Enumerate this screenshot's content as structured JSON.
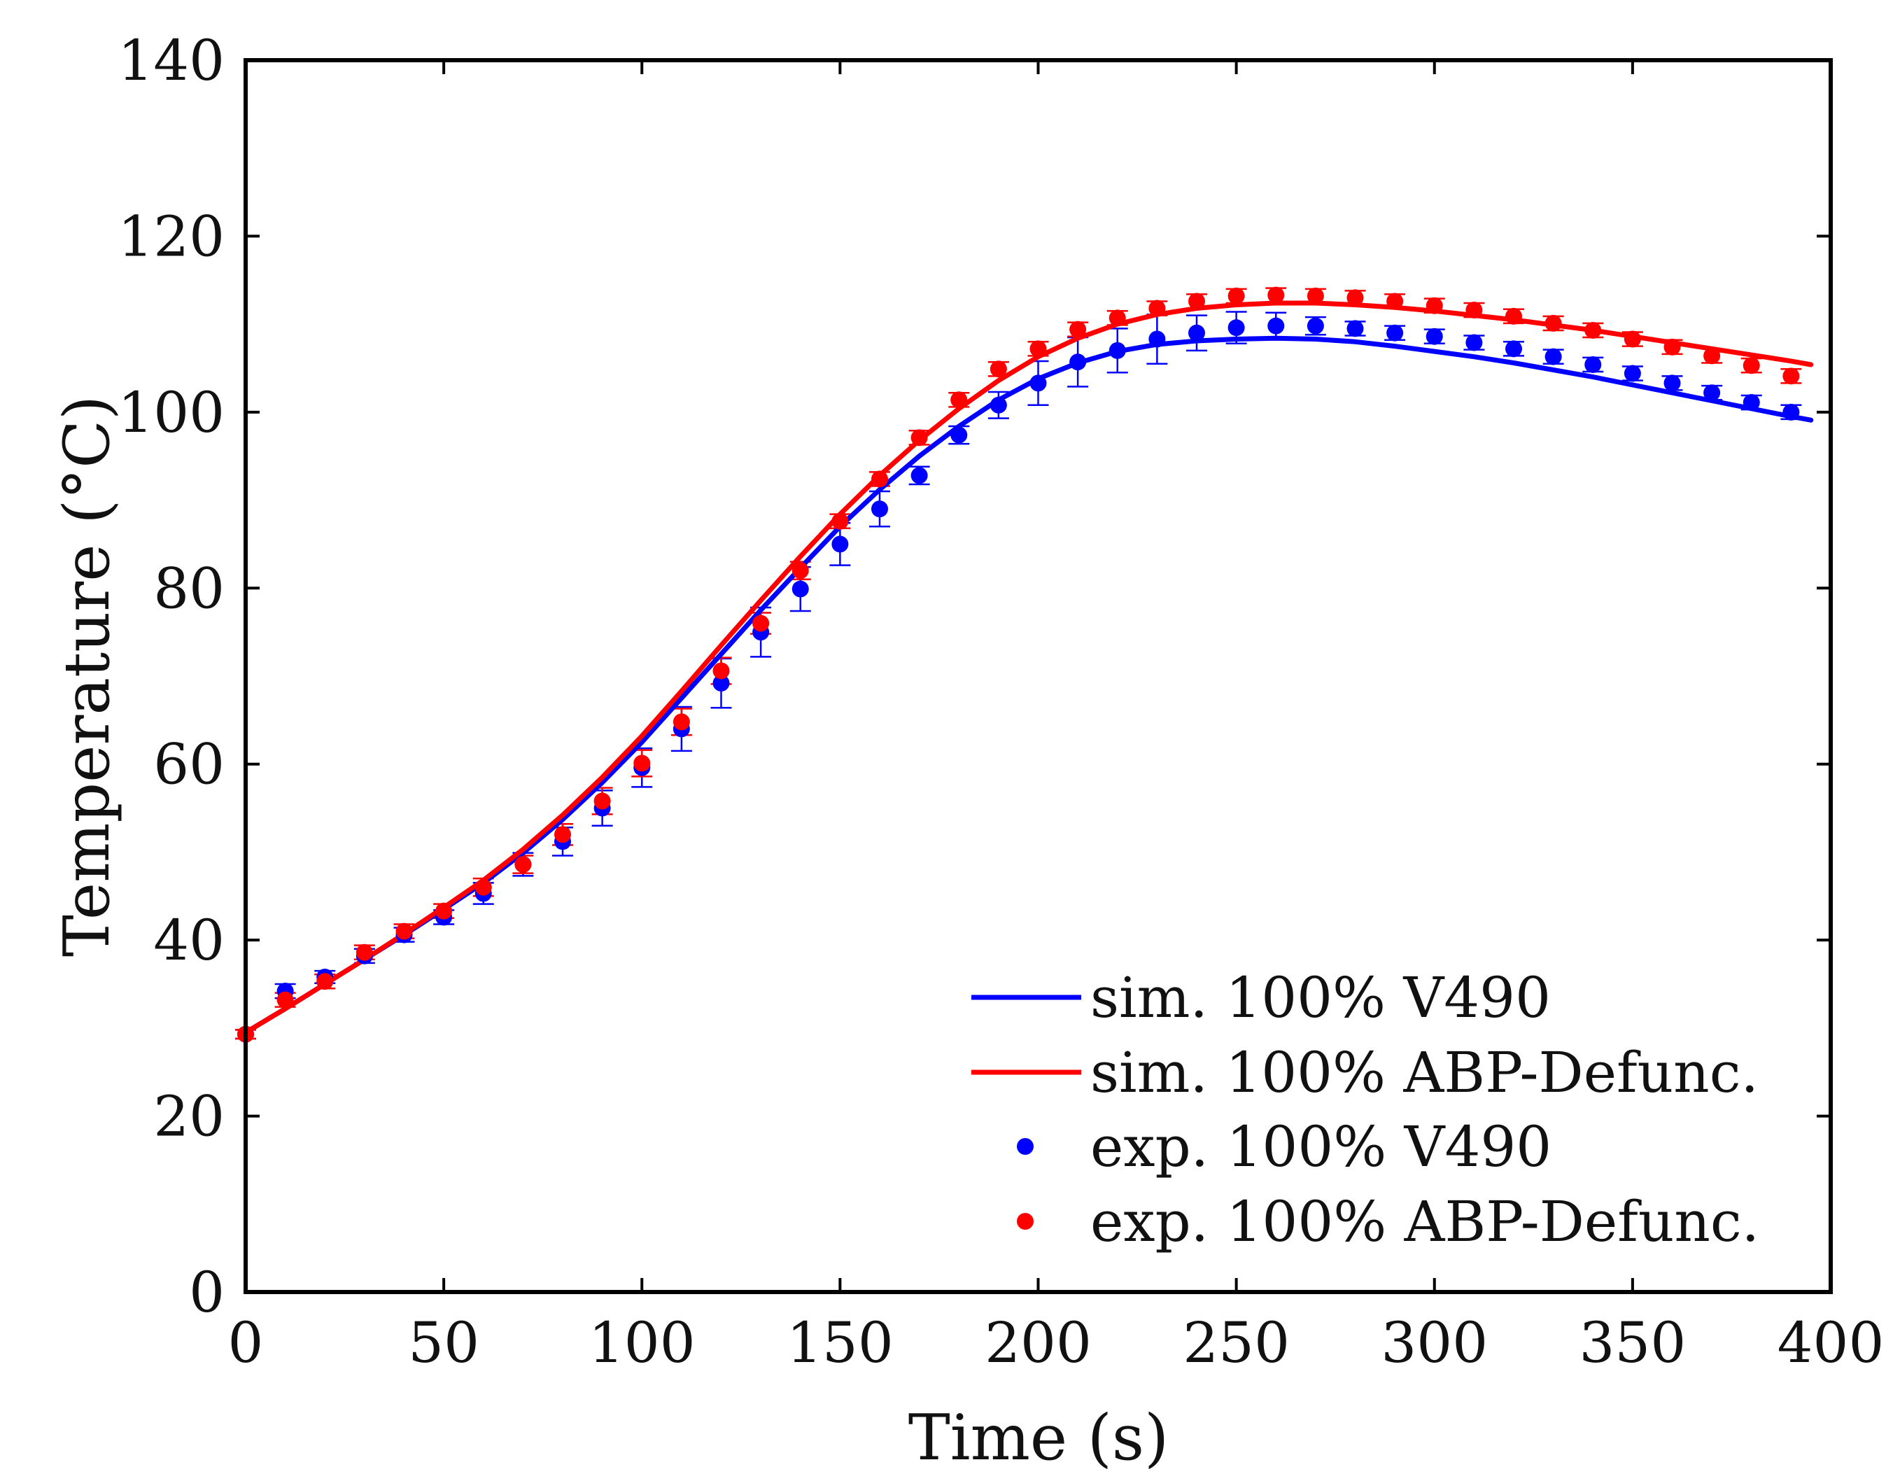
{
  "chart_data": {
    "type": "line",
    "title": "",
    "xlabel": "Time (s)",
    "ylabel": "Temperature (°C)",
    "xlim": [
      0,
      400
    ],
    "ylim": [
      0,
      140
    ],
    "xticks": [
      0,
      50,
      100,
      150,
      200,
      250,
      300,
      350,
      400
    ],
    "yticks": [
      0,
      20,
      40,
      60,
      80,
      100,
      120,
      140
    ],
    "grid": false,
    "legend_position": "bottom-right",
    "series": [
      {
        "name": "sim. 100% V490",
        "kind": "line",
        "color": "#0000ff",
        "x": [
          0,
          10,
          20,
          30,
          40,
          50,
          60,
          70,
          80,
          90,
          100,
          110,
          120,
          130,
          140,
          150,
          160,
          170,
          180,
          190,
          200,
          210,
          220,
          230,
          240,
          250,
          260,
          270,
          280,
          290,
          300,
          310,
          320,
          330,
          340,
          350,
          360,
          370,
          380,
          390,
          395
        ],
        "y": [
          29.5,
          32.2,
          35.0,
          37.8,
          40.6,
          43.5,
          46.5,
          49.9,
          53.7,
          57.9,
          62.5,
          67.5,
          72.5,
          77.5,
          82.3,
          87.0,
          91.2,
          95.0,
          98.4,
          101.4,
          103.8,
          105.6,
          106.9,
          107.7,
          108.1,
          108.3,
          108.4,
          108.3,
          108.0,
          107.5,
          106.9,
          106.3,
          105.6,
          104.8,
          104.0,
          103.1,
          102.2,
          101.3,
          100.4,
          99.5,
          99.1
        ]
      },
      {
        "name": "sim. 100% ABP-Defunc.",
        "kind": "line",
        "color": "#ff0000",
        "x": [
          0,
          10,
          20,
          30,
          40,
          50,
          60,
          70,
          80,
          90,
          100,
          110,
          120,
          130,
          140,
          150,
          160,
          170,
          180,
          190,
          200,
          210,
          220,
          230,
          240,
          250,
          260,
          270,
          280,
          290,
          300,
          310,
          320,
          330,
          340,
          350,
          360,
          370,
          380,
          390,
          395
        ],
        "y": [
          29.5,
          32.2,
          35.0,
          37.8,
          40.7,
          43.7,
          46.8,
          50.3,
          54.2,
          58.5,
          63.2,
          68.3,
          73.5,
          78.6,
          83.6,
          88.4,
          92.8,
          96.8,
          100.4,
          103.6,
          106.3,
          108.4,
          110.0,
          111.1,
          111.8,
          112.2,
          112.4,
          112.4,
          112.2,
          111.9,
          111.5,
          111.0,
          110.5,
          109.9,
          109.3,
          108.6,
          107.9,
          107.2,
          106.5,
          105.8,
          105.4
        ]
      },
      {
        "name": "exp. 100% V490",
        "kind": "scatter",
        "color": "#0000ff",
        "x": [
          0,
          10,
          20,
          30,
          40,
          50,
          60,
          70,
          80,
          90,
          100,
          110,
          120,
          130,
          140,
          150,
          160,
          170,
          180,
          190,
          200,
          210,
          220,
          230,
          240,
          250,
          260,
          270,
          280,
          290,
          300,
          310,
          320,
          330,
          340,
          350,
          360,
          370,
          380,
          390
        ],
        "y": [
          29.3,
          34.2,
          35.8,
          38.2,
          40.6,
          42.6,
          45.3,
          48.6,
          51.2,
          55.0,
          59.6,
          64.0,
          69.2,
          75.0,
          79.9,
          85.0,
          89.0,
          92.8,
          97.4,
          100.8,
          103.3,
          105.7,
          107.0,
          108.3,
          109.0,
          109.6,
          109.8,
          109.8,
          109.5,
          109.0,
          108.6,
          107.9,
          107.2,
          106.3,
          105.4,
          104.4,
          103.3,
          102.2,
          101.1,
          100.0
        ],
        "error": [
          0.5,
          0.8,
          0.7,
          0.8,
          0.8,
          0.8,
          1.2,
          1.3,
          1.6,
          2.0,
          2.2,
          2.5,
          2.8,
          2.8,
          2.5,
          2.4,
          2.0,
          1.0,
          1.0,
          1.5,
          2.5,
          2.8,
          2.5,
          2.8,
          2.0,
          1.8,
          1.5,
          1.0,
          0.8,
          0.8,
          0.8,
          0.8,
          0.8,
          0.8,
          0.8,
          0.8,
          0.8,
          0.8,
          0.8,
          0.8
        ]
      },
      {
        "name": "exp. 100% ABP-Defunc.",
        "kind": "scatter",
        "color": "#ff0000",
        "x": [
          0,
          10,
          20,
          30,
          40,
          50,
          60,
          70,
          80,
          90,
          100,
          110,
          120,
          130,
          140,
          150,
          160,
          170,
          180,
          190,
          200,
          210,
          220,
          230,
          240,
          250,
          260,
          270,
          280,
          290,
          300,
          310,
          320,
          330,
          340,
          350,
          360,
          370,
          380,
          390
        ],
        "y": [
          29.3,
          33.2,
          35.3,
          38.6,
          41.0,
          43.3,
          46.0,
          48.6,
          52.0,
          55.8,
          60.1,
          64.8,
          70.6,
          76.0,
          82.0,
          87.6,
          92.4,
          97.1,
          101.4,
          104.9,
          107.2,
          109.4,
          110.7,
          111.8,
          112.6,
          113.2,
          113.3,
          113.2,
          113.0,
          112.6,
          112.1,
          111.6,
          110.9,
          110.1,
          109.3,
          108.3,
          107.4,
          106.4,
          105.3,
          104.1
        ],
        "error": [
          0.5,
          0.8,
          0.8,
          0.8,
          0.8,
          0.8,
          1.0,
          1.0,
          1.2,
          1.5,
          1.5,
          1.5,
          1.5,
          1.2,
          1.0,
          0.8,
          0.8,
          0.8,
          0.8,
          0.8,
          0.8,
          0.8,
          0.8,
          0.8,
          0.8,
          0.8,
          0.8,
          0.8,
          0.8,
          0.8,
          0.8,
          0.8,
          0.8,
          0.8,
          0.8,
          0.8,
          0.8,
          0.8,
          0.8,
          0.8
        ]
      }
    ]
  }
}
